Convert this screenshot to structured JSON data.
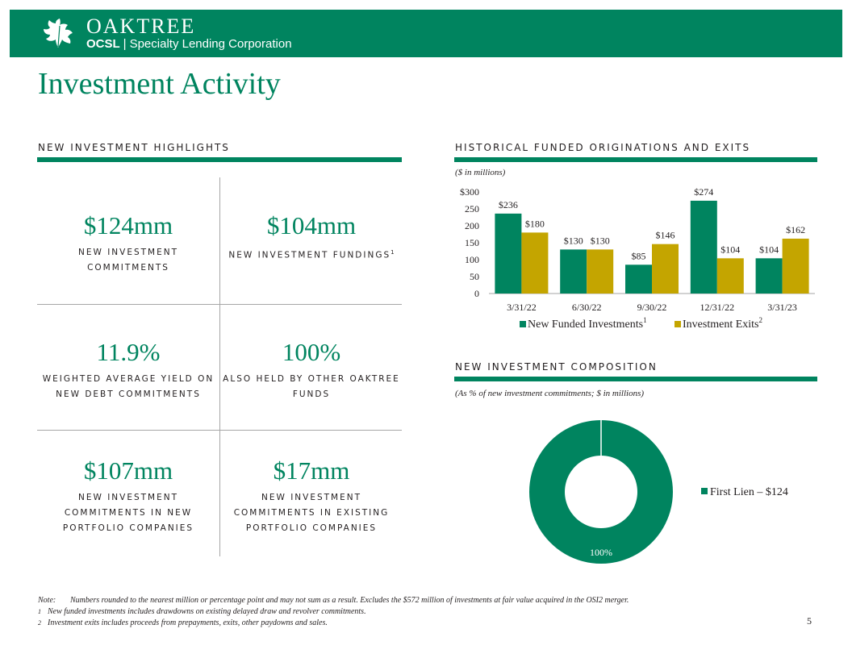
{
  "header": {
    "brand_name": "OAKTREE",
    "ticker": "OCSL",
    "separator": "|",
    "company": "Specialty Lending Corporation"
  },
  "page_title": "Investment Activity",
  "highlights": {
    "heading": "New Investment Highlights",
    "cells": [
      {
        "value": "$124mm",
        "label": "New Investment Commitments",
        "sup": ""
      },
      {
        "value": "$104mm",
        "label": "New Investment Fundings",
        "sup": "1"
      },
      {
        "value": "11.9%",
        "label": "Weighted Average Yield on New Debt Commitments",
        "sup": ""
      },
      {
        "value": "100%",
        "label": "Also Held by Other Oaktree Funds",
        "sup": ""
      },
      {
        "value": "$107mm",
        "label": "New Investment Commitments in New Portfolio Companies",
        "sup": ""
      },
      {
        "value": "$17mm",
        "label": "New Investment Commitments in Existing Portfolio Companies",
        "sup": ""
      }
    ]
  },
  "originations": {
    "heading": "Historical Funded Originations and Exits",
    "unit_note": "($ in millions)"
  },
  "composition": {
    "heading": "New Investment Composition",
    "unit_note": "(As % of new investment commitments; $ in millions)"
  },
  "chart_data": [
    {
      "type": "bar",
      "title": "Historical Funded Originations and Exits",
      "ylabel": "$ in millions",
      "categories": [
        "3/31/22",
        "6/30/22",
        "9/30/22",
        "12/31/22",
        "3/31/23"
      ],
      "series": [
        {
          "name": "New Funded Investments",
          "sup": "1",
          "color": "#00845f",
          "values": [
            236,
            130,
            85,
            274,
            104
          ],
          "labels": [
            "$236",
            "$130",
            "$85",
            "$274",
            "$104"
          ]
        },
        {
          "name": "Investment Exits",
          "sup": "2",
          "color": "#c4a500",
          "values": [
            180,
            130,
            146,
            104,
            162
          ],
          "labels": [
            "$180",
            "$130",
            "$146",
            "$104",
            "$162"
          ]
        }
      ],
      "ylim": [
        0,
        300
      ],
      "yticks": [
        0,
        50,
        100,
        150,
        200,
        250,
        300
      ],
      "ytick_labels": [
        "0",
        "50",
        "100",
        "150",
        "200",
        "250",
        "$300"
      ],
      "legend": "bottom"
    },
    {
      "type": "pie",
      "title": "New Investment Composition",
      "slices": [
        {
          "name": "First Lien – $124",
          "value": 100,
          "label": "100%",
          "color": "#00845f"
        }
      ],
      "legend": "right"
    }
  ],
  "footnotes": {
    "note_marker": "Note:",
    "note": "Numbers rounded to the nearest million or percentage point and may not sum as a result. Excludes the $572 million of investments at fair value acquired in the OSI2 merger.",
    "items": [
      {
        "marker": "1",
        "text": "New funded investments includes drawdowns on existing delayed draw and revolver commitments."
      },
      {
        "marker": "2",
        "text": "Investment exits includes proceeds from prepayments, exits, other paydowns and sales."
      }
    ]
  },
  "page_number": "5",
  "colors": {
    "brand_green": "#00845f",
    "gold": "#c4a500",
    "grid": "#a6a6a6"
  }
}
